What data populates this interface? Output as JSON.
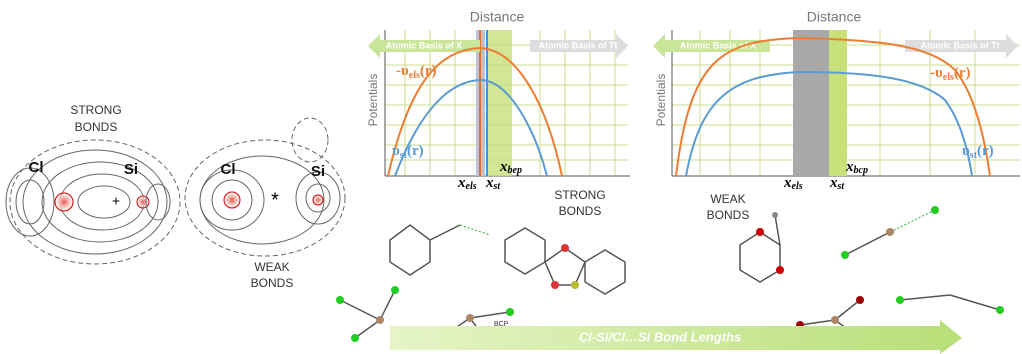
{
  "contour_maps": {
    "strong": {
      "label": [
        "STRONG",
        "BONDS"
      ],
      "atoms": [
        "Cl",
        "Si"
      ]
    },
    "weak": {
      "label": [
        "WEAK",
        "BONDS"
      ],
      "atoms": [
        "Cl",
        "Si"
      ]
    }
  },
  "panels": [
    {
      "title": "Distance",
      "left_basis": "Atomic Basis of X",
      "right_basis": "Atomic Basis of Tt",
      "y_label": "Potentials",
      "els_curve": {
        "main": "-υ",
        "sub": "els",
        "tail": "(r)"
      },
      "st_curve": {
        "main": "υ",
        "sub": "st",
        "tail": "(r)"
      },
      "markers": {
        "els": {
          "main": "x",
          "sub": "els"
        },
        "st": {
          "main": "x",
          "sub": "st"
        },
        "bcp": {
          "main": "x",
          "sub": "bep"
        }
      }
    },
    {
      "title": "Distance",
      "left_basis": "Atomic Basis of X",
      "right_basis": "Atomic Basis of Tt",
      "y_label": "Potentials",
      "els_curve": {
        "main": "-υ",
        "sub": "els",
        "tail": "(r)"
      },
      "st_curve": {
        "main": "υ",
        "sub": "st",
        "tail": "(r)"
      },
      "markers": {
        "els": {
          "main": "x",
          "sub": "els"
        },
        "st": {
          "main": "x",
          "sub": "st"
        },
        "bcp": {
          "main": "x",
          "sub": "bcp"
        }
      }
    }
  ],
  "molecules": {
    "strong_label": [
      "STRONG",
      "BONDS"
    ],
    "weak_label": [
      "WEAK",
      "BONDS"
    ],
    "bcp": "BCP"
  },
  "arrow_label": "Cl-Si/Cl…Si Bond Lengths"
}
